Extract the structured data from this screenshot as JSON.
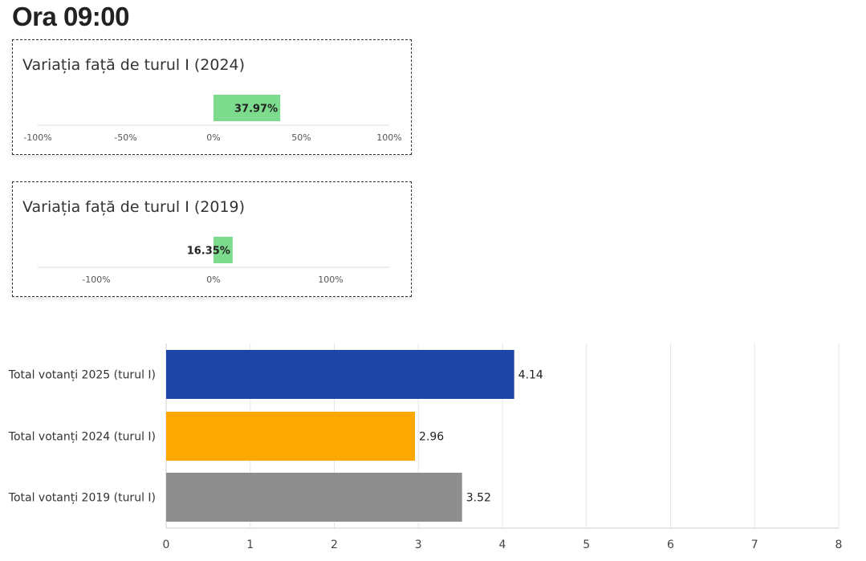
{
  "page": {
    "title": "Ora 09:00"
  },
  "colors": {
    "positive_bar": "#7ddb8e",
    "series_2025": "#1f44a8",
    "series_2024": "#fca800",
    "series_2019": "#8e8e8e"
  },
  "chart_data": [
    {
      "type": "bar",
      "orientation": "horizontal",
      "title": "Variația față de turul I (2024)",
      "values": [
        37.97
      ],
      "value_labels": [
        "37.97%"
      ],
      "xlim": [
        -100,
        100
      ],
      "x_ticks": [
        -100,
        -50,
        0,
        50,
        100
      ],
      "x_tick_labels": [
        "-100%",
        "-50%",
        "0%",
        "50%",
        "100%"
      ],
      "grid": false
    },
    {
      "type": "bar",
      "orientation": "horizontal",
      "title": "Variația față de turul I (2019)",
      "values": [
        16.35
      ],
      "value_labels": [
        "16.35%"
      ],
      "xlim": [
        -150,
        150
      ],
      "x_ticks": [
        -100,
        0,
        100
      ],
      "x_tick_labels": [
        "-100%",
        "0%",
        "100%"
      ],
      "grid": false
    },
    {
      "type": "bar",
      "orientation": "horizontal",
      "categories": [
        "Total votanți 2025 (turul I)",
        "Total votanți 2024 (turul I)",
        "Total votanți 2019 (turul I)"
      ],
      "values": [
        4.14,
        2.96,
        3.52
      ],
      "value_labels": [
        "4.14",
        "2.96",
        "3.52"
      ],
      "xlim": [
        0,
        8
      ],
      "x_ticks": [
        0,
        1,
        2,
        3,
        4,
        5,
        6,
        7,
        8
      ],
      "x_tick_labels": [
        "0",
        "1",
        "2",
        "3",
        "4",
        "5",
        "6",
        "7",
        "8"
      ],
      "grid": true
    }
  ]
}
